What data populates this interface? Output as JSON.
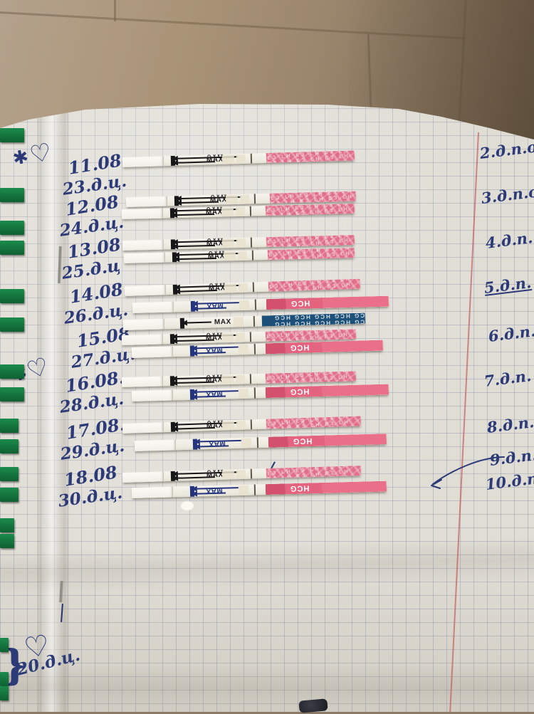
{
  "photo_subject": "notebook page with pregnancy and ovulation test strips taped in rows",
  "left_column": [
    {
      "date": "11.08.",
      "cycle_day": "23.д.ц."
    },
    {
      "date": "12.08",
      "cycle_day": "24.д.ц."
    },
    {
      "date": "13.08",
      "cycle_day": "25.д.ц"
    },
    {
      "date": "14.08.",
      "cycle_day": "26.д.ц."
    },
    {
      "date": "15.08.",
      "cycle_day": "27.д.ц."
    },
    {
      "date": "16.08.",
      "cycle_day": "28.д.ц."
    },
    {
      "date": "17.08.",
      "cycle_day": "29.д.ц."
    },
    {
      "date": "18.08",
      "cycle_day": "30.д.ц."
    }
  ],
  "right_column": [
    {
      "text": "2.д.п.о.",
      "underline": false
    },
    {
      "text": "3.д.п.о.",
      "underline": false
    },
    {
      "text": "4.д.п.",
      "underline": false
    },
    {
      "text": "5.д.п.",
      "underline": true
    },
    {
      "text": "6.д.п.",
      "underline": false
    },
    {
      "text": "7.д.п.",
      "underline": false
    },
    {
      "text": "8.д.п.",
      "underline": false
    },
    {
      "text": "9.д.п.",
      "underline": false
    },
    {
      "text": "10.д.п.",
      "underline": false
    }
  ],
  "bottom_note": {
    "brace": "}",
    "text": "20.д.ц."
  },
  "rows_strips": [
    [
      "lh"
    ],
    [
      "lh",
      "lh"
    ],
    [
      "lh",
      "lh"
    ],
    [
      "lh",
      "hcg_pink",
      "hcg_navy"
    ],
    [
      "lh",
      "hcg_pink"
    ],
    [
      "lh",
      "hcg_pink"
    ],
    [
      "lh",
      "hcg_pink"
    ],
    [
      "lh",
      "hcg_pink"
    ]
  ],
  "strip_labels": {
    "max": "MAX",
    "hcg": "HCG",
    "navy_repeat": "HCG HCG HCG HCG HCG HCG HCG HCG HCG HCG",
    "pink_pattern": "ЕЗ LH ЕЗ LH ЕЗ LH ЕЗ LH ЕЗ LH ЕЗ LH ЕЗ LH"
  },
  "doodles": {
    "heart": "♡",
    "star": "✱"
  },
  "colors": {
    "lh_pattern_pink": "#e0708a",
    "hcg_handle_pink": "#ea7089",
    "hcg_navy": "#1d5078",
    "ink_blue": "#2c3a78",
    "margin_red": "#c05555",
    "tab_green": "#157a42",
    "wall_beige": "#a89376",
    "paper": "#e0ddd5"
  }
}
